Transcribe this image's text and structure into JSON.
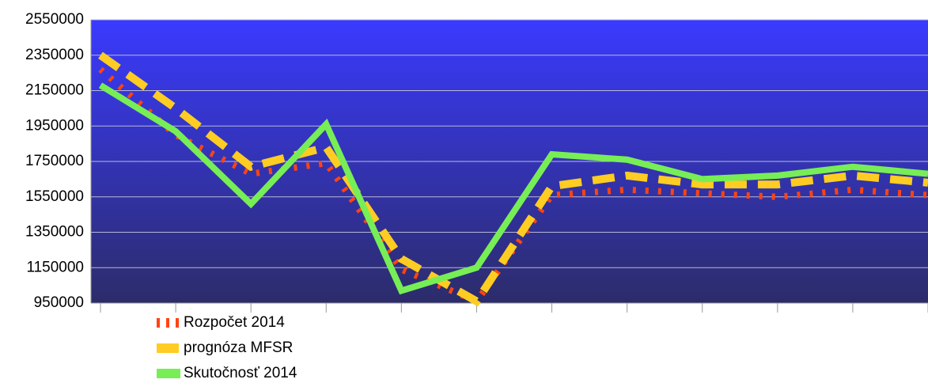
{
  "chart_data": {
    "type": "line",
    "categories": [
      null,
      null,
      null,
      null,
      null,
      null,
      null,
      null,
      null,
      null,
      null,
      null
    ],
    "series": [
      {
        "name": "Rozpočet 2014",
        "color": "#ff4411",
        "dash": "4 12",
        "width": 8,
        "values": [
          2270000,
          1900000,
          1680000,
          1740000,
          1140000,
          960000,
          1560000,
          1590000,
          1570000,
          1550000,
          1590000,
          1560000
        ]
      },
      {
        "name": "prognóza MFSR",
        "color": "#ffcc22",
        "dash": "28 14",
        "width": 10,
        "values": [
          2350000,
          2050000,
          1720000,
          1830000,
          1200000,
          960000,
          1610000,
          1670000,
          1620000,
          1620000,
          1670000,
          1630000
        ]
      },
      {
        "name": "Skutočnosť  2014",
        "color": "#77ee55",
        "dash": null,
        "width": 8,
        "values": [
          2180000,
          1920000,
          1510000,
          1960000,
          1020000,
          1150000,
          1790000,
          1760000,
          1650000,
          1670000,
          1720000,
          1680000
        ]
      }
    ],
    "ylim": [
      950000,
      2550000
    ],
    "yticks": [
      950000,
      1150000,
      1350000,
      1550000,
      1750000,
      1950000,
      2150000,
      2350000,
      2550000
    ],
    "grid": true,
    "legend": "bottom-left"
  }
}
